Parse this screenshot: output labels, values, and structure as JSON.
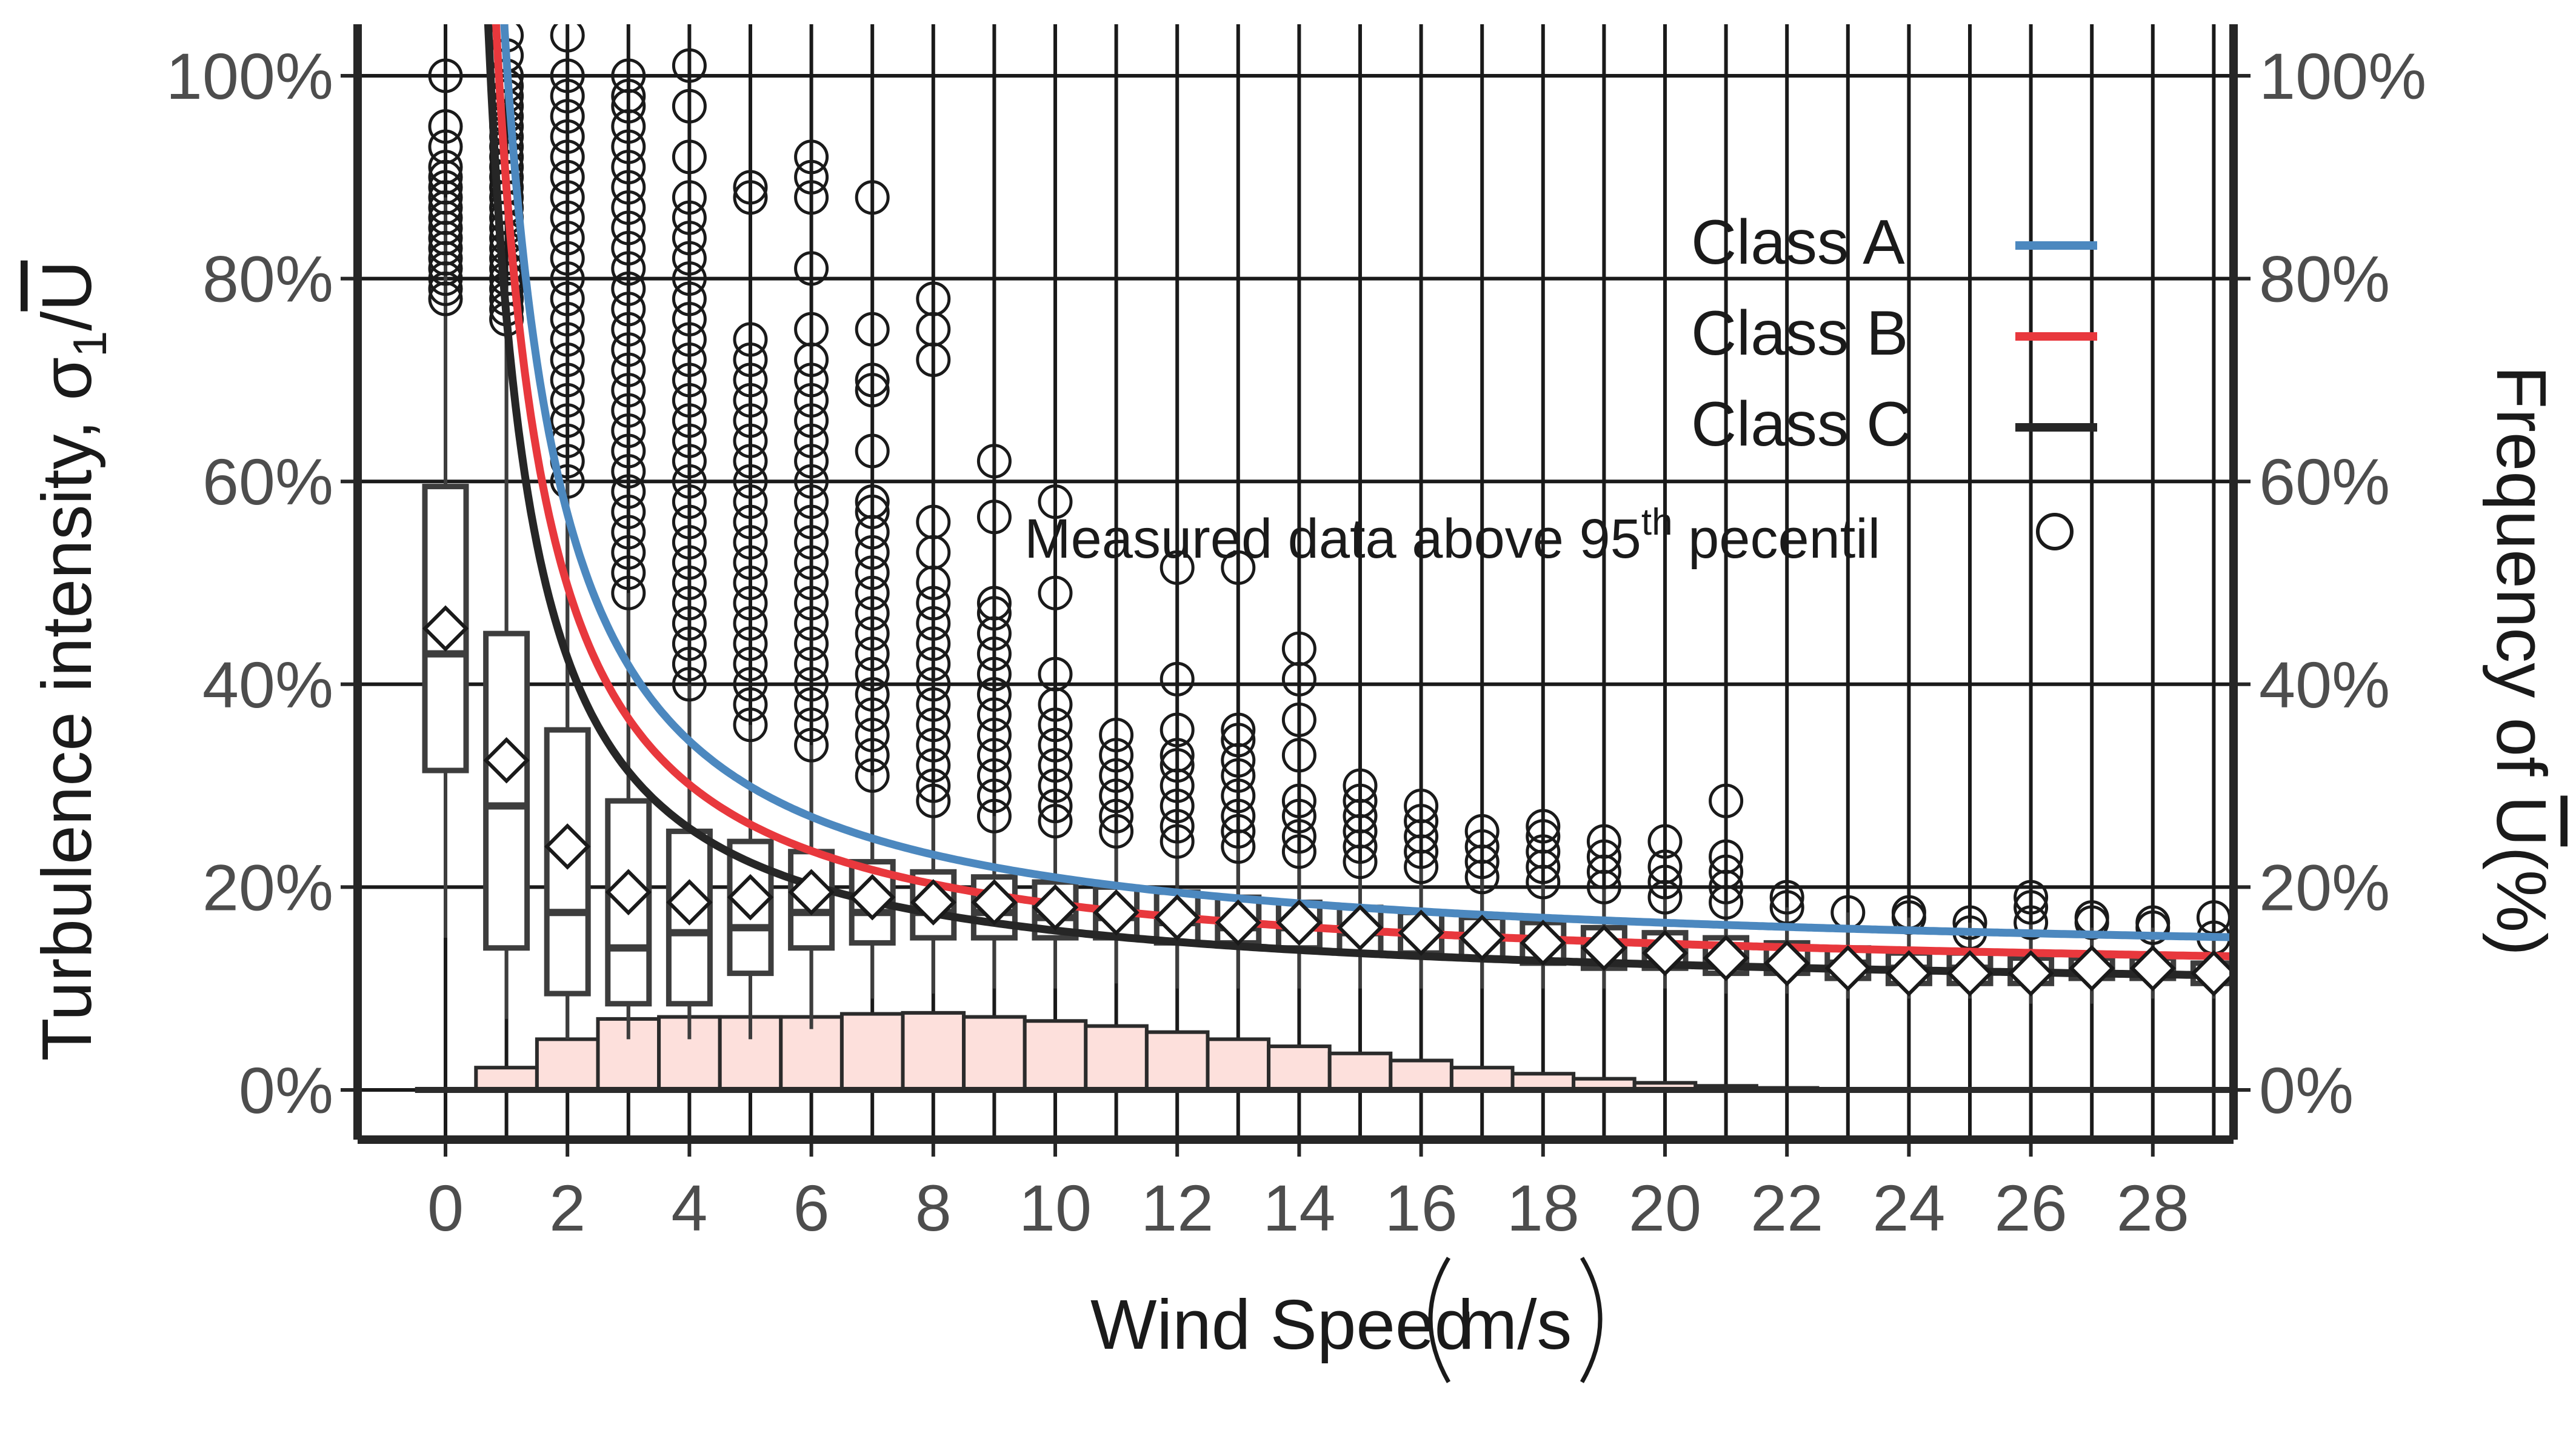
{
  "chart_data": {
    "type": "boxplot+line+bar",
    "xlabel": "Wind Speed",
    "xlabel_unit": "m/s",
    "ylabel": "Turbulence intensity, σ",
    "ylabel_sub": "1",
    "ylabel_denominator": "U",
    "y2label": "Frequency of ",
    "y2label_var": "U",
    "y2label_unit": "(%)",
    "xlim": [
      -0.7,
      29.7
    ],
    "ylim": [
      -5,
      105
    ],
    "x_ticks": [
      0,
      2,
      4,
      6,
      8,
      10,
      12,
      14,
      16,
      18,
      20,
      22,
      24,
      26,
      28
    ],
    "x_tick_labels": [
      "0",
      "2",
      "4",
      "6",
      "8",
      "10",
      "12",
      "14",
      "16",
      "18",
      "20",
      "22",
      "24",
      "26",
      "28"
    ],
    "y_ticks": [
      0,
      20,
      40,
      60,
      80,
      100
    ],
    "y_tick_labels": [
      "0%",
      "20%",
      "40%",
      "60%",
      "80%",
      "100%"
    ],
    "y2_tick_labels": [
      "0%",
      "20%",
      "40%",
      "60%",
      "80%",
      "100%"
    ],
    "grid": true,
    "series": [
      {
        "name": "Class A",
        "color": "#4c88bf",
        "I_ref": 0.16
      },
      {
        "name": "Class B",
        "color": "#e8383d",
        "I_ref": 0.14
      },
      {
        "name": "Class C",
        "color": "#262626",
        "I_ref": 0.12
      }
    ],
    "boxes": [
      {
        "x": 0,
        "q1": 31.5,
        "median": 43,
        "q3": 59.5,
        "lo": 15,
        "hi": 88,
        "mean": 45.5
      },
      {
        "x": 1,
        "q1": 14,
        "median": 28,
        "q3": 45,
        "lo": 7,
        "hi": 78,
        "mean": 32.5
      },
      {
        "x": 2,
        "q1": 9.5,
        "median": 17.5,
        "q3": 35.5,
        "lo": 5,
        "hi": 60,
        "mean": 24
      },
      {
        "x": 3,
        "q1": 8.5,
        "median": 14,
        "q3": 28.5,
        "lo": 5,
        "hi": 49,
        "mean": 19.5
      },
      {
        "x": 4,
        "q1": 8.5,
        "median": 15.5,
        "q3": 25.5,
        "lo": 5,
        "hi": 40,
        "mean": 18.5
      },
      {
        "x": 5,
        "q1": 11.5,
        "median": 16,
        "q3": 24.5,
        "lo": 5,
        "hi": 36,
        "mean": 19
      },
      {
        "x": 6,
        "q1": 14,
        "median": 17.5,
        "q3": 23.5,
        "lo": 6,
        "hi": 34,
        "mean": 19.5
      },
      {
        "x": 7,
        "q1": 14.5,
        "median": 17.5,
        "q3": 22.5,
        "lo": 9,
        "hi": 31,
        "mean": 19
      },
      {
        "x": 8,
        "q1": 15,
        "median": 17.5,
        "q3": 21.5,
        "lo": 9.5,
        "hi": 28.5,
        "mean": 18.5
      },
      {
        "x": 9,
        "q1": 15,
        "median": 17.5,
        "q3": 21,
        "lo": 10,
        "hi": 27,
        "mean": 18.5
      },
      {
        "x": 10,
        "q1": 15,
        "median": 17,
        "q3": 20.5,
        "lo": 10,
        "hi": 26.5,
        "mean": 18
      },
      {
        "x": 11,
        "q1": 15,
        "median": 17,
        "q3": 20,
        "lo": 10.5,
        "hi": 25.5,
        "mean": 17.5
      },
      {
        "x": 12,
        "q1": 14.5,
        "median": 16.5,
        "q3": 19.5,
        "lo": 10,
        "hi": 24.5,
        "mean": 17
      },
      {
        "x": 13,
        "q1": 14.5,
        "median": 16,
        "q3": 19,
        "lo": 10,
        "hi": 24,
        "mean": 16.5
      },
      {
        "x": 14,
        "q1": 14,
        "median": 16,
        "q3": 18.5,
        "lo": 10,
        "hi": 23.5,
        "mean": 16.5
      },
      {
        "x": 15,
        "q1": 13.5,
        "median": 15.5,
        "q3": 18,
        "lo": 10,
        "hi": 22.5,
        "mean": 16
      },
      {
        "x": 16,
        "q1": 13.5,
        "median": 15.5,
        "q3": 17.5,
        "lo": 10,
        "hi": 22,
        "mean": 15.5
      },
      {
        "x": 17,
        "q1": 13,
        "median": 15,
        "q3": 17,
        "lo": 10,
        "hi": 21,
        "mean": 15
      },
      {
        "x": 18,
        "q1": 12.5,
        "median": 14.5,
        "q3": 16.5,
        "lo": 10,
        "hi": 20.5,
        "mean": 14.5
      },
      {
        "x": 19,
        "q1": 12,
        "median": 14,
        "q3": 16,
        "lo": 10,
        "hi": 20,
        "mean": 14
      },
      {
        "x": 20,
        "q1": 12,
        "median": 13.5,
        "q3": 15.5,
        "lo": 10,
        "hi": 19,
        "mean": 13.5
      },
      {
        "x": 21,
        "q1": 11.5,
        "median": 13,
        "q3": 15,
        "lo": 9.5,
        "hi": 18.5,
        "mean": 13
      },
      {
        "x": 22,
        "q1": 11.5,
        "median": 12.5,
        "q3": 14.5,
        "lo": 9.5,
        "hi": 18,
        "mean": 12.5
      },
      {
        "x": 23,
        "q1": 11,
        "median": 12.5,
        "q3": 14,
        "lo": 9,
        "hi": 17.5,
        "mean": 12
      },
      {
        "x": 24,
        "q1": 10.5,
        "median": 12,
        "q3": 13.5,
        "lo": 9,
        "hi": 17,
        "mean": 11.5
      },
      {
        "x": 25,
        "q1": 10.5,
        "median": 12,
        "q3": 13.5,
        "lo": 9,
        "hi": 16.5,
        "mean": 11.5
      },
      {
        "x": 26,
        "q1": 10.5,
        "median": 11.5,
        "q3": 13,
        "lo": 8.5,
        "hi": 16.5,
        "mean": 11.5
      },
      {
        "x": 27,
        "q1": 11,
        "median": 12,
        "q3": 13,
        "lo": 8.5,
        "hi": 16,
        "mean": 12
      },
      {
        "x": 28,
        "q1": 11,
        "median": 12,
        "q3": 13,
        "lo": 9,
        "hi": 16,
        "mean": 12
      },
      {
        "x": 29,
        "q1": 10.5,
        "median": 11.5,
        "q3": 12.5,
        "lo": 9,
        "hi": 15,
        "mean": 11.5
      }
    ],
    "outliers": [
      {
        "x": 0,
        "y": [
          78,
          79,
          80,
          81,
          82,
          83,
          84,
          85,
          86,
          87,
          88,
          89,
          90,
          91,
          93,
          95,
          100
        ]
      },
      {
        "x": 1,
        "y": [
          76,
          77,
          78,
          79,
          80,
          81,
          82,
          83,
          84,
          85,
          86,
          87,
          88,
          89,
          90,
          91,
          92,
          93,
          94,
          95,
          96,
          97,
          98,
          99,
          100,
          102,
          104
        ]
      },
      {
        "x": 2,
        "y": [
          60,
          62,
          64,
          66,
          68,
          70,
          72,
          74,
          76,
          78,
          80,
          82,
          84,
          86,
          88,
          90,
          92,
          94,
          96,
          98,
          100,
          104
        ]
      },
      {
        "x": 3,
        "y": [
          49,
          51,
          53,
          55,
          57,
          59,
          61,
          63,
          65,
          67,
          69,
          71,
          73,
          75,
          77,
          79,
          81,
          83,
          85,
          87,
          89,
          91,
          93,
          95,
          97,
          98,
          100
        ]
      },
      {
        "x": 4,
        "y": [
          40,
          42,
          44,
          46,
          48,
          50,
          52,
          54,
          56,
          58,
          60,
          62,
          64,
          66,
          68,
          70,
          72,
          74,
          76,
          78,
          80,
          82,
          84,
          86,
          88,
          92,
          97,
          101
        ]
      },
      {
        "x": 5,
        "y": [
          36,
          38,
          40,
          42,
          44,
          46,
          48,
          50,
          52,
          54,
          56,
          58,
          60,
          62,
          64,
          66,
          68,
          70,
          72,
          74,
          88,
          89
        ]
      },
      {
        "x": 6,
        "y": [
          34,
          36,
          38,
          40,
          42,
          44,
          46,
          48,
          50,
          52,
          54,
          56,
          58,
          60,
          62,
          64,
          66,
          68,
          70,
          72,
          75,
          81,
          88,
          90,
          92
        ]
      },
      {
        "x": 7,
        "y": [
          31,
          33,
          35,
          37,
          39,
          41,
          43,
          45,
          47,
          49,
          51,
          53,
          55,
          57,
          58,
          63,
          69,
          70,
          75,
          88
        ]
      },
      {
        "x": 8,
        "y": [
          28.5,
          30,
          32,
          34,
          36,
          38,
          40,
          42,
          44,
          46,
          48,
          50,
          53,
          56,
          72,
          75,
          78
        ]
      },
      {
        "x": 9,
        "y": [
          27,
          29,
          31,
          33,
          35,
          37,
          39,
          41,
          43,
          45,
          47,
          48,
          56.5,
          62
        ]
      },
      {
        "x": 10,
        "y": [
          26.5,
          28,
          30,
          32,
          34,
          36,
          38,
          41,
          49,
          58
        ]
      },
      {
        "x": 11,
        "y": [
          25.5,
          27,
          29,
          31,
          33,
          35
        ]
      },
      {
        "x": 12,
        "y": [
          24.5,
          26,
          28,
          30,
          32,
          33,
          35.5,
          40.5,
          51.5
        ]
      },
      {
        "x": 13,
        "y": [
          24,
          25.5,
          27,
          29,
          31,
          32.5,
          34.5,
          35.5,
          51.5
        ]
      },
      {
        "x": 14,
        "y": [
          23.5,
          25,
          27,
          28.5,
          33,
          36.5,
          40.5,
          43.5
        ]
      },
      {
        "x": 15,
        "y": [
          22.5,
          24,
          25.5,
          27,
          28.5,
          30
        ]
      },
      {
        "x": 16,
        "y": [
          22,
          23.5,
          25,
          26.5,
          28
        ]
      },
      {
        "x": 17,
        "y": [
          21,
          22.5,
          24,
          25.5
        ]
      },
      {
        "x": 18,
        "y": [
          20.5,
          22,
          23.5,
          25,
          26
        ]
      },
      {
        "x": 19,
        "y": [
          20,
          21.5,
          23,
          24.5
        ]
      },
      {
        "x": 20,
        "y": [
          19,
          20.5,
          22,
          24.5
        ]
      },
      {
        "x": 21,
        "y": [
          18.5,
          20,
          21.5,
          23,
          28.5
        ]
      },
      {
        "x": 22,
        "y": [
          18,
          19
        ]
      },
      {
        "x": 23,
        "y": [
          17.5
        ]
      },
      {
        "x": 24,
        "y": [
          17,
          17.5
        ]
      },
      {
        "x": 25,
        "y": [
          16.5,
          15.5
        ]
      },
      {
        "x": 26,
        "y": [
          16.5,
          18,
          19
        ]
      },
      {
        "x": 27,
        "y": [
          16.5,
          17
        ]
      },
      {
        "x": 28,
        "y": [
          16,
          16.5
        ]
      },
      {
        "x": 29,
        "y": [
          15,
          17
        ]
      }
    ],
    "frequency": [
      {
        "x": 1,
        "y": 2.2
      },
      {
        "x": 2,
        "y": 5
      },
      {
        "x": 3,
        "y": 7
      },
      {
        "x": 4,
        "y": 7.2
      },
      {
        "x": 5,
        "y": 7.2
      },
      {
        "x": 6,
        "y": 7.2
      },
      {
        "x": 7,
        "y": 7.5
      },
      {
        "x": 8,
        "y": 7.6
      },
      {
        "x": 9,
        "y": 7.2
      },
      {
        "x": 10,
        "y": 6.8
      },
      {
        "x": 11,
        "y": 6.3
      },
      {
        "x": 12,
        "y": 5.7
      },
      {
        "x": 13,
        "y": 5
      },
      {
        "x": 14,
        "y": 4.3
      },
      {
        "x": 15,
        "y": 3.6
      },
      {
        "x": 16,
        "y": 2.9
      },
      {
        "x": 17,
        "y": 2.2
      },
      {
        "x": 18,
        "y": 1.6
      },
      {
        "x": 19,
        "y": 1.1
      },
      {
        "x": 20,
        "y": 0.7
      },
      {
        "x": 21,
        "y": 0.4
      },
      {
        "x": 22,
        "y": 0.2
      },
      {
        "x": 23,
        "y": 0.1
      },
      {
        "x": 24,
        "y": 0.05
      },
      {
        "x": 25,
        "y": 0
      },
      {
        "x": 26,
        "y": 0
      },
      {
        "x": 27,
        "y": 0
      },
      {
        "x": 28,
        "y": 0
      },
      {
        "x": 29,
        "y": 0
      }
    ],
    "legend": {
      "position": "top-right",
      "entries": [
        "Class A",
        "Class B",
        "Class C"
      ]
    },
    "annotation": {
      "text_before": "Measured data above 95",
      "superscript": "th",
      "text_after": " pecentil"
    }
  },
  "colors": {
    "bar_fill": "#fde0dc",
    "bar_stroke": "#2b2b2b",
    "box_stroke": "#3d3d3d",
    "grid": "#1a1a1a",
    "axis": "#262626"
  }
}
